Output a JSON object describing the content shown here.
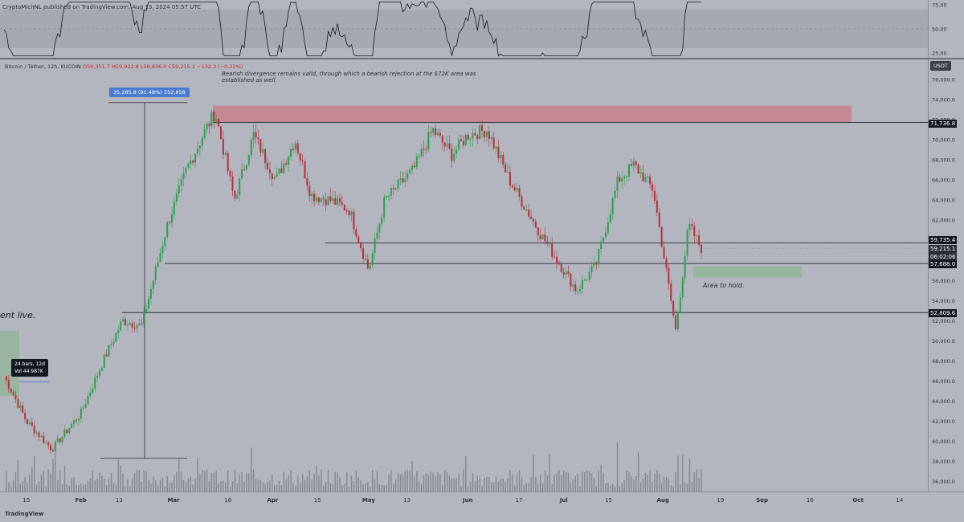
{
  "header": {
    "published": "CryptoMichNL published on TradingView.com, Aug 13, 2024 05:57 UTC"
  },
  "symbol_bar": {
    "name": "Bitcoin / Tether, 12h, KUCOIN",
    "ohlc": "O59,351.7  H59,922.8  L58,836.0  C59,215.1  −132.3 (−0.22%)"
  },
  "annotations": {
    "note": "Bearish divergence remains valid, through which a bearish rejection at the $72K area was established as well.",
    "area_to_hold": "Area to hold.",
    "live_text": "ent live.",
    "measure": "35,285.8 (91.48%) 352,858",
    "bars_range": "24 bars, 12d",
    "bars_vol": "Vol 44.987K"
  },
  "price_axis": {
    "currency": "USDT",
    "ticks": [
      "76,000.0",
      "74,000.0",
      "72,000.0",
      "70,000.0",
      "68,000.0",
      "66,000.0",
      "64,000.0",
      "62,000.0",
      "60,000.0",
      "58,000.0",
      "56,000.0",
      "54,000.0",
      "52,000.0",
      "50,000.0",
      "48,000.0",
      "46,000.0",
      "44,000.0",
      "42,000.0",
      "40,000.0",
      "38,000.0",
      "36,000.0"
    ],
    "labels": {
      "resistance": "71,736.8",
      "upper": "59,735.4",
      "last": "59,215.1",
      "countdown": "06:02:06",
      "lower": "57,688.0",
      "support": "52,809.6"
    }
  },
  "rsi_axis": {
    "ticks": [
      "75.00",
      "50.00",
      "25.00"
    ]
  },
  "time_axis": {
    "ticks": [
      "15",
      "Feb",
      "13",
      "Mar",
      "18",
      "Apr",
      "15",
      "May",
      "13",
      "Jun",
      "17",
      "Jul",
      "15",
      "Aug",
      "19",
      "Sep",
      "16",
      "Oct",
      "14"
    ]
  },
  "branding": {
    "logo": "TradingView"
  },
  "colors": {
    "background": "#b3b6bf",
    "up_candle": "#2e9e4f",
    "down_candle": "#b5303a",
    "resistance_zone": "#c97a86",
    "support_zone": "#8fb596",
    "text": "#131722"
  },
  "chart_data": {
    "type": "candlestick",
    "symbol": "Bitcoin / Tether",
    "interval": "12h",
    "exchange": "KUCOIN",
    "y_scale": "linear",
    "ylim": [
      35000,
      78000
    ],
    "x_dates": [
      "2024-01-08",
      "2024-01-15",
      "2024-01-23",
      "2024-02-01",
      "2024-02-08",
      "2024-02-14",
      "2024-02-20",
      "2024-02-28",
      "2024-03-05",
      "2024-03-11",
      "2024-03-14",
      "2024-03-20",
      "2024-03-26",
      "2024-04-02",
      "2024-04-08",
      "2024-04-13",
      "2024-04-19",
      "2024-04-25",
      "2024-05-01",
      "2024-05-06",
      "2024-05-15",
      "2024-05-21",
      "2024-05-27",
      "2024-06-01",
      "2024-06-07",
      "2024-06-14",
      "2024-06-24",
      "2024-07-05",
      "2024-07-11",
      "2024-07-18",
      "2024-07-23",
      "2024-07-29",
      "2024-08-05",
      "2024-08-09",
      "2024-08-13"
    ],
    "close_approx": [
      46500,
      42000,
      39200,
      42800,
      48000,
      52000,
      51500,
      61500,
      67000,
      71000,
      72800,
      64000,
      70500,
      66000,
      70000,
      64500,
      64000,
      63000,
      57000,
      64000,
      67000,
      71000,
      68500,
      70500,
      71000,
      66000,
      60500,
      55000,
      57500,
      66000,
      67500,
      65000,
      51000,
      61500,
      59215
    ],
    "levels": [
      {
        "label": "resistance",
        "value": 71736.8
      },
      {
        "label": "upper",
        "value": 59735.4
      },
      {
        "label": "lower",
        "value": 57688.0
      },
      {
        "label": "support",
        "value": 52809.6
      }
    ],
    "zones": [
      {
        "type": "resistance",
        "from": 71736.8,
        "to": 73400
      },
      {
        "type": "area_to_hold",
        "from": 56300,
        "to": 57400
      }
    ],
    "rsi": {
      "ylim": [
        20,
        80
      ],
      "bands": [
        30,
        70
      ],
      "midline": 50
    }
  }
}
